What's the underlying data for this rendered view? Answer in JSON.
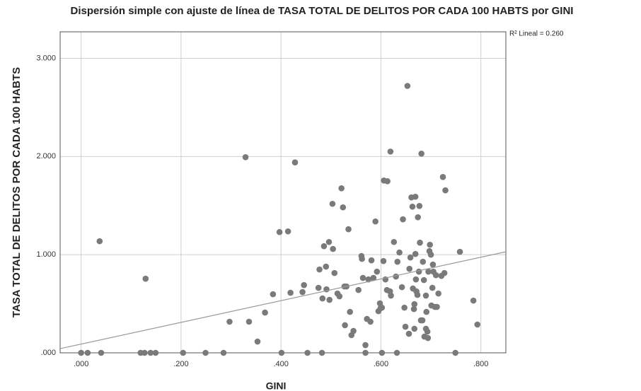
{
  "chart_data": {
    "type": "scatter",
    "title": "Dispersión simple con ajuste de línea de TASA TOTAL DE DELITOS POR CADA 100 HABTS por GINI",
    "x_label": "GINI",
    "y_label": "TASA TOTAL DE DELITOS POR CADA 100 HABTS",
    "annotation": "R² Lineal = 0.260",
    "color": "#7a7a7a",
    "fit_color": "#9a9a9a",
    "grid": true,
    "xlim": [
      -0.042,
      0.85
    ],
    "ylim": [
      0,
      3.27
    ],
    "xticks": [
      {
        "value": 0,
        "label": ".000"
      },
      {
        "value": 0.2,
        "label": ".200"
      },
      {
        "value": 0.4,
        "label": ".400"
      },
      {
        "value": 0.6,
        "label": ".600"
      },
      {
        "value": 0.8,
        "label": ".800"
      }
    ],
    "yticks": [
      {
        "value": 0,
        "label": ".000"
      },
      {
        "value": 1,
        "label": "1.000"
      },
      {
        "value": 2,
        "label": "2.000"
      },
      {
        "value": 3,
        "label": "3.000"
      }
    ],
    "fit": {
      "intercept": 0.089,
      "slope": 1.106
    },
    "x": [
      0,
      0.013,
      0.04,
      0.119,
      0.127,
      0.139,
      0.149,
      0.204,
      0.249,
      0.285,
      0.401,
      0.453,
      0.482,
      0.569,
      0.602,
      0.632,
      0.749,
      0.037,
      0.129,
      0.297,
      0.329,
      0.336,
      0.353,
      0.368,
      0.384,
      0.397,
      0.414,
      0.419,
      0.428,
      0.443,
      0.446,
      0.475,
      0.477,
      0.483,
      0.486,
      0.49,
      0.491,
      0.496,
      0.497,
      0.503,
      0.504,
      0.507,
      0.513,
      0.517,
      0.521,
      0.524,
      0.527,
      0.528,
      0.531,
      0.535,
      0.538,
      0.541,
      0.545,
      0.555,
      0.561,
      0.562,
      0.564,
      0.569,
      0.572,
      0.575,
      0.579,
      0.581,
      0.585,
      0.589,
      0.592,
      0.595,
      0.598,
      0.599,
      0.602,
      0.605,
      0.606,
      0.609,
      0.612,
      0.613,
      0.618,
      0.619,
      0.62,
      0.626,
      0.63,
      0.633,
      0.637,
      0.642,
      0.644,
      0.647,
      0.649,
      0.653,
      0.656,
      0.657,
      0.659,
      0.661,
      0.663,
      0.664,
      0.666,
      0.667,
      0.667,
      0.669,
      0.669,
      0.67,
      0.671,
      0.673,
      0.674,
      0.676,
      0.677,
      0.678,
      0.68,
      0.681,
      0.683,
      0.684,
      0.686,
      0.687,
      0.69,
      0.69,
      0.691,
      0.693,
      0.694,
      0.695,
      0.697,
      0.698,
      0.7,
      0.701,
      0.703,
      0.704,
      0.705,
      0.708,
      0.71,
      0.712,
      0.715,
      0.721,
      0.724,
      0.727,
      0.729,
      0.758,
      0.785,
      0.793
    ],
    "y": [
      0,
      0,
      0,
      0,
      0,
      0,
      0,
      0,
      0,
      0,
      0,
      0,
      0,
      0,
      0,
      0,
      0,
      1.137,
      0.755,
      0.317,
      1.993,
      0.317,
      0.115,
      0.41,
      0.597,
      1.23,
      1.237,
      0.612,
      1.94,
      0.619,
      0.69,
      0.662,
      0.849,
      0.554,
      1.086,
      0.878,
      0.647,
      1.129,
      0.54,
      1.518,
      1.058,
      0.813,
      0.604,
      0.576,
      1.676,
      1.482,
      0.676,
      0.281,
      0.676,
      1.259,
      0.417,
      0.18,
      0.223,
      0.64,
      0.986,
      0.957,
      0.763,
      0.079,
      0.345,
      0.748,
      0.317,
      0.942,
      0.763,
      1.338,
      0.827,
      0.424,
      0.504,
      0.453,
      0.46,
      0.935,
      1.755,
      0.748,
      0.64,
      1.748,
      0.626,
      2.05,
      0.583,
      1.129,
      0.777,
      0.928,
      1.022,
      0.669,
      1.36,
      0.46,
      0.266,
      2.719,
      0.194,
      0.856,
      0.971,
      1.583,
      1.489,
      0.655,
      0.446,
      0.496,
      0.245,
      1.59,
      1.007,
      0.748,
      0.626,
      0.59,
      1.381,
      0.827,
      1.496,
      1.122,
      0.331,
      2.029,
      0.331,
      0.928,
      0.741,
      0.165,
      0.583,
      0.245,
      0.417,
      0.216,
      0.151,
      0.827,
      1.036,
      1.101,
      1,
      0.482,
      0.662,
      0.899,
      0.827,
      0.468,
      0.791,
      0.468,
      0.604,
      0.784,
      1.791,
      0.813,
      1.655,
      1.029,
      0.532,
      0.288
    ]
  }
}
